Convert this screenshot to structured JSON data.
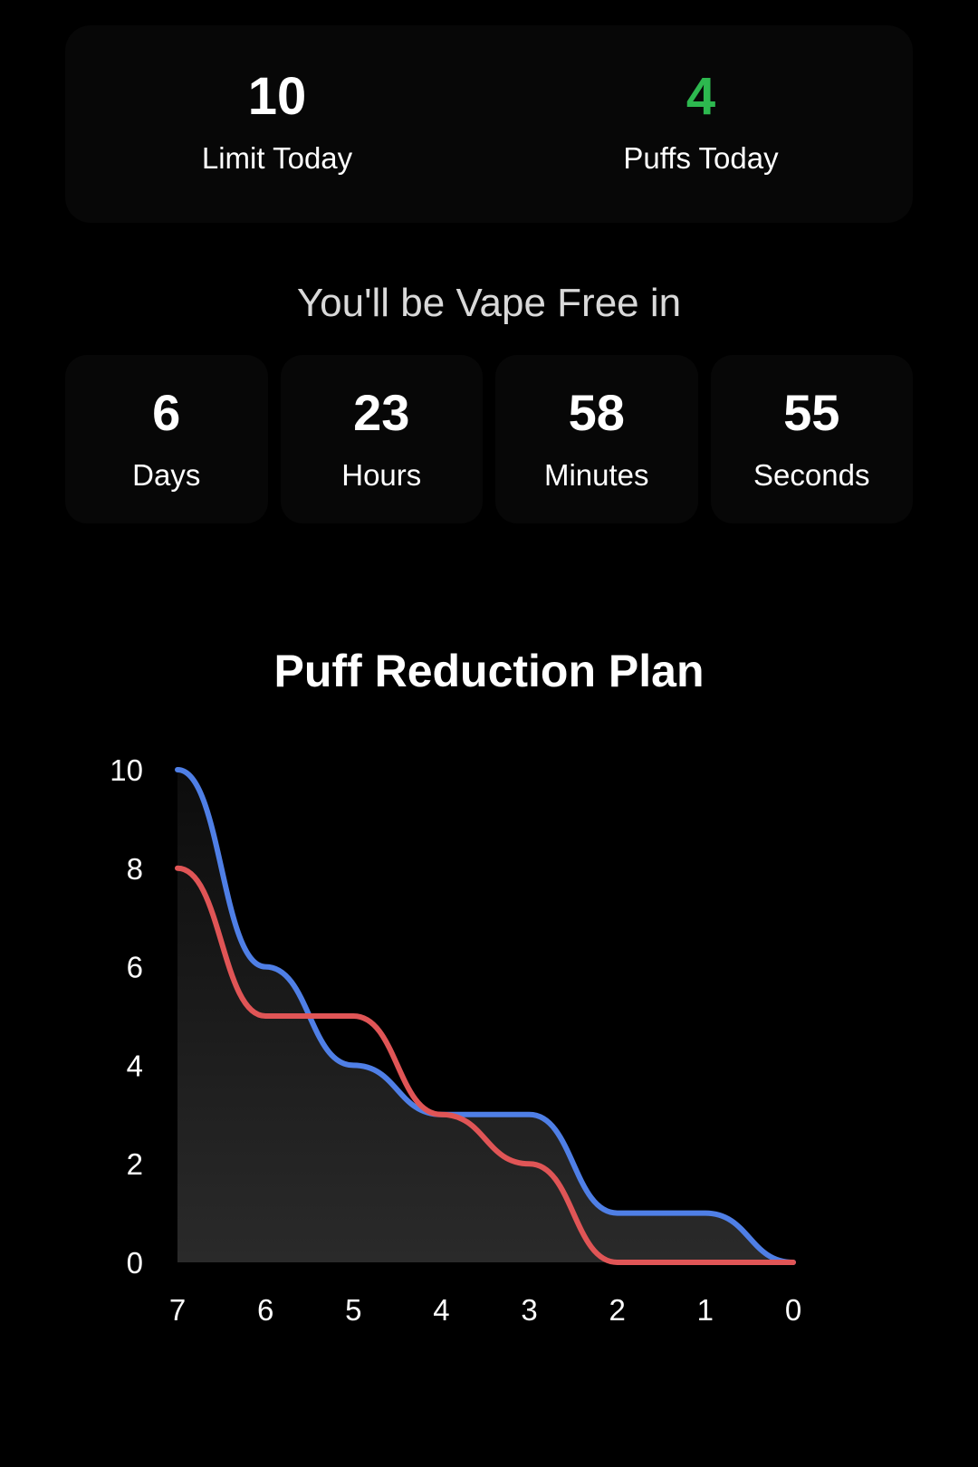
{
  "stats": {
    "limit_value": "10",
    "limit_label": "Limit Today",
    "puffs_value": "4",
    "puffs_label": "Puffs Today",
    "puffs_color": "#2db84f"
  },
  "vape_free_text": "You'll be Vape Free in",
  "countdown": {
    "days": {
      "value": "6",
      "label": "Days"
    },
    "hours": {
      "value": "23",
      "label": "Hours"
    },
    "minutes": {
      "value": "58",
      "label": "Minutes"
    },
    "seconds": {
      "value": "55",
      "label": "Seconds"
    }
  },
  "chart_title": "Puff Reduction Plan",
  "chart_data": {
    "type": "area",
    "title": "Puff Reduction Plan",
    "x": [
      7,
      6,
      5,
      4,
      3,
      2,
      1,
      0
    ],
    "xtick_labels": [
      "7",
      "6",
      "5",
      "4",
      "3",
      "2",
      "1",
      "0"
    ],
    "ytick_labels": [
      "0",
      "2",
      "4",
      "6",
      "8",
      "10"
    ],
    "ylim": [
      0,
      10
    ],
    "series": [
      {
        "color": "#4f7fe6",
        "values": [
          10,
          6,
          4,
          3,
          3,
          1,
          1,
          0
        ],
        "filled": true
      },
      {
        "color": "#e05556",
        "values": [
          8,
          5,
          5,
          3,
          2,
          0,
          0,
          0
        ],
        "filled": false
      }
    ],
    "xlabel": "",
    "ylabel": "",
    "grid": false
  }
}
